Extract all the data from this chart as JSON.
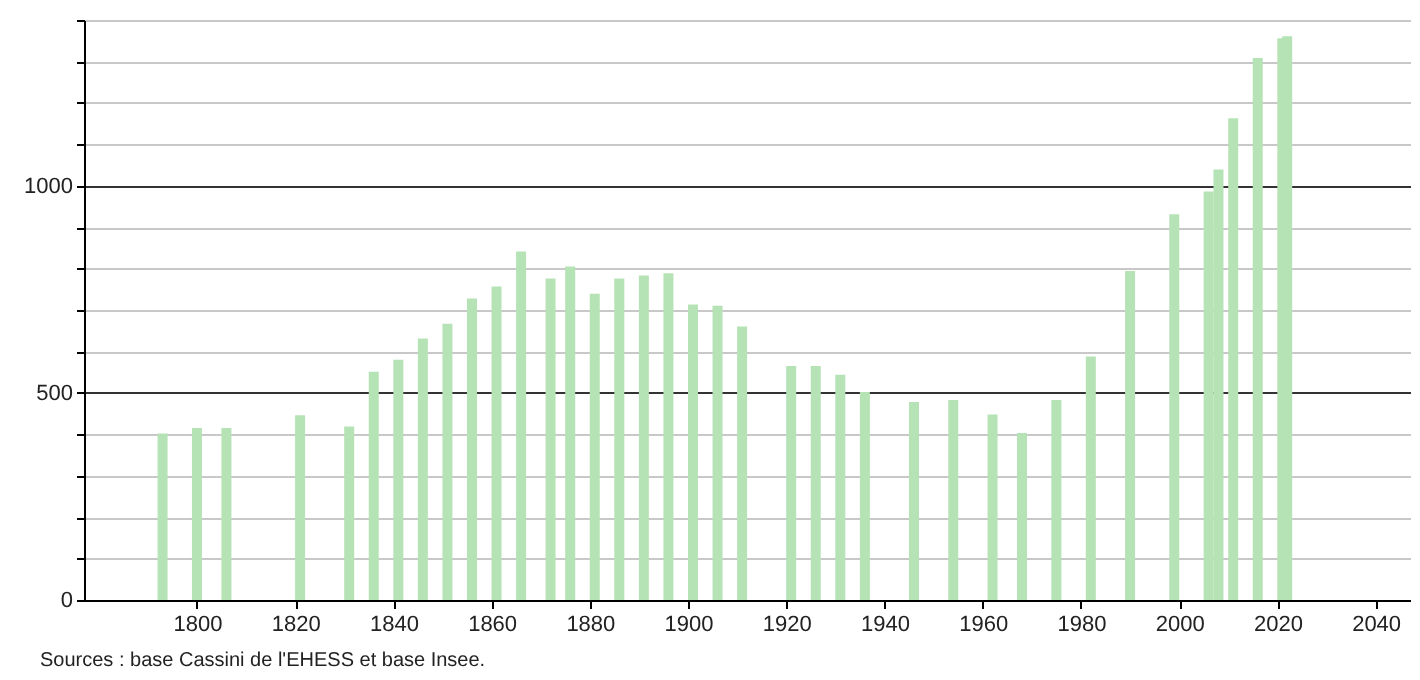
{
  "chart_data": {
    "type": "bar",
    "color": "#b5e3b5",
    "x": [
      1793,
      1800,
      1806,
      1821,
      1831,
      1836,
      1841,
      1846,
      1851,
      1856,
      1861,
      1866,
      1872,
      1876,
      1881,
      1886,
      1891,
      1896,
      1901,
      1906,
      1911,
      1921,
      1926,
      1931,
      1936,
      1946,
      1954,
      1962,
      1968,
      1975,
      1982,
      1990,
      1999,
      2006,
      2008,
      2011,
      2016,
      2021,
      2022
    ],
    "values": [
      402,
      415,
      415,
      446,
      419,
      551,
      580,
      631,
      667,
      728,
      757,
      841,
      776,
      805,
      739,
      776,
      783,
      789,
      713,
      710,
      660,
      565,
      565,
      544,
      502,
      478,
      483,
      448,
      403,
      483,
      588,
      794,
      931,
      986,
      1039,
      1163,
      1308,
      1356,
      1361
    ],
    "xlim": [
      1777,
      2047
    ],
    "xticks": [
      1800,
      1820,
      1840,
      1860,
      1880,
      1900,
      1920,
      1940,
      1960,
      1980,
      2000,
      2020,
      2040
    ],
    "ylim": [
      0,
      1400
    ],
    "yticks": [
      0,
      {
        "value": 100,
        "label": null
      },
      {
        "value": 200,
        "label": null
      },
      {
        "value": 300,
        "label": null
      },
      {
        "value": 400,
        "label": null
      },
      500,
      {
        "value": 600,
        "label": null
      },
      {
        "value": 700,
        "label": null
      },
      {
        "value": 800,
        "label": null
      },
      {
        "value": 900,
        "label": null
      },
      1000,
      {
        "value": 1100,
        "label": null
      },
      {
        "value": 1200,
        "label": null
      },
      {
        "value": 1300,
        "label": null
      },
      {
        "value": 1400,
        "label": null
      }
    ],
    "grid": "y",
    "annotations": [
      "Sources : base Cassini de l'EHESS et base Insee."
    ]
  }
}
